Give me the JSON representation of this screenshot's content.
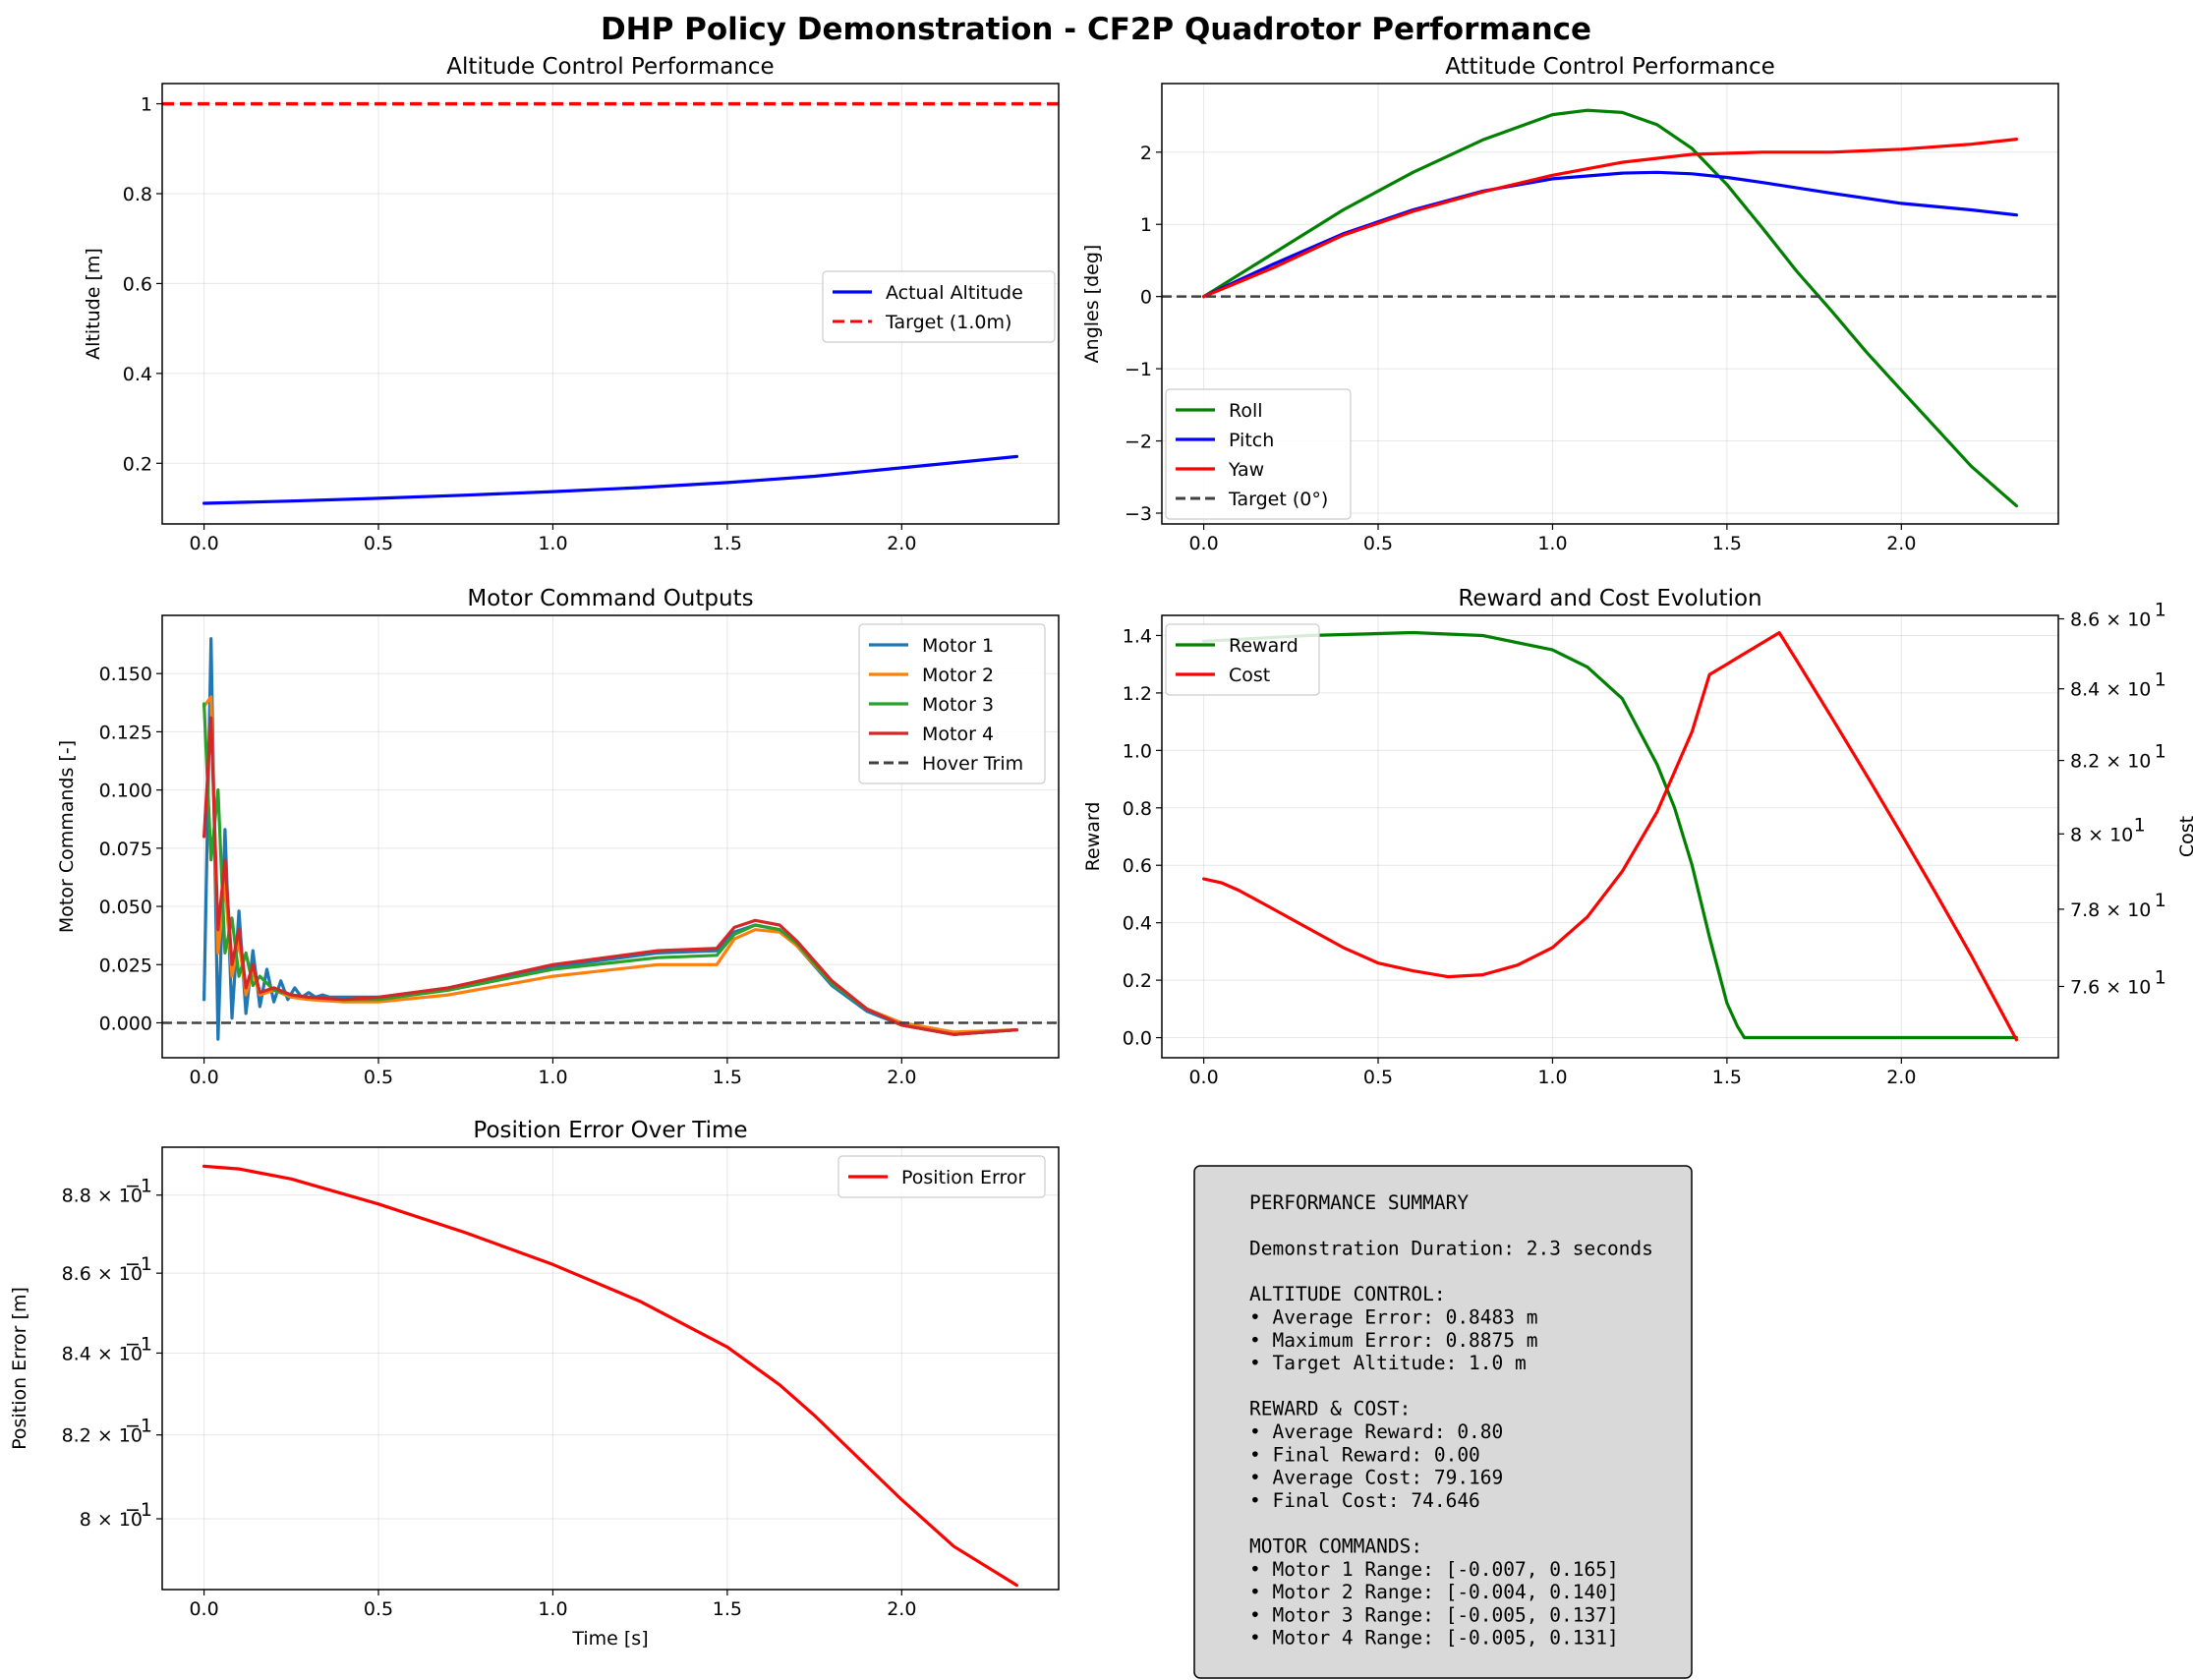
{
  "suptitle": "DHP Policy Demonstration - CF2P Quadrotor Performance",
  "colors": {
    "blue": "#0000ff",
    "red": "#ff0000",
    "green": "#008000",
    "dark": "#404040",
    "motor1": "#1f77b4",
    "motor2": "#ff7f0e",
    "motor3": "#2ca02c",
    "motor4": "#d62728"
  },
  "chart_data": [
    {
      "id": "altitude",
      "type": "line",
      "title": "Altitude Control Performance",
      "xlabel": "",
      "ylabel": "Altitude [m]",
      "xlim": [
        -0.12,
        2.45
      ],
      "ylim": [
        0.065,
        1.045
      ],
      "xticks": [
        0.0,
        0.5,
        1.0,
        1.5,
        2.0
      ],
      "yticks": [
        0.2,
        0.4,
        0.6,
        0.8,
        1.0
      ],
      "legend_position": "center-right",
      "series": [
        {
          "name": "Actual Altitude",
          "color": "#0000ff",
          "style": "solid",
          "x": [
            0,
            0.25,
            0.5,
            0.75,
            1.0,
            1.25,
            1.5,
            1.75,
            2.0,
            2.33
          ],
          "y": [
            0.111,
            0.116,
            0.122,
            0.129,
            0.137,
            0.146,
            0.157,
            0.171,
            0.19,
            0.215
          ]
        },
        {
          "name": "Target (1.0m)",
          "color": "#ff0000",
          "style": "dashed",
          "hline": 1.0
        }
      ]
    },
    {
      "id": "attitude",
      "type": "line",
      "title": "Attitude Control Performance",
      "xlabel": "",
      "ylabel": "Angles [deg]",
      "xlim": [
        -0.12,
        2.45
      ],
      "ylim": [
        -3.15,
        2.95
      ],
      "xticks": [
        0.0,
        0.5,
        1.0,
        1.5,
        2.0
      ],
      "yticks": [
        -3,
        -2,
        -1,
        0,
        1,
        2
      ],
      "legend_position": "lower-left",
      "series": [
        {
          "name": "Roll",
          "color": "#008000",
          "style": "solid",
          "x": [
            0,
            0.2,
            0.4,
            0.6,
            0.8,
            1.0,
            1.1,
            1.2,
            1.3,
            1.4,
            1.5,
            1.6,
            1.7,
            1.8,
            1.9,
            2.0,
            2.2,
            2.33
          ],
          "y": [
            0,
            0.6,
            1.2,
            1.72,
            2.17,
            2.52,
            2.58,
            2.55,
            2.38,
            2.05,
            1.55,
            0.96,
            0.35,
            -0.2,
            -0.77,
            -1.3,
            -2.35,
            -2.9
          ]
        },
        {
          "name": "Pitch",
          "color": "#0000ff",
          "style": "solid",
          "x": [
            0,
            0.2,
            0.4,
            0.6,
            0.8,
            1.0,
            1.2,
            1.3,
            1.4,
            1.5,
            1.6,
            1.8,
            2.0,
            2.2,
            2.33
          ],
          "y": [
            0,
            0.45,
            0.87,
            1.2,
            1.46,
            1.63,
            1.71,
            1.72,
            1.7,
            1.65,
            1.58,
            1.43,
            1.29,
            1.2,
            1.13
          ]
        },
        {
          "name": "Yaw",
          "color": "#ff0000",
          "style": "solid",
          "x": [
            0,
            0.2,
            0.4,
            0.6,
            0.8,
            1.0,
            1.2,
            1.4,
            1.6,
            1.8,
            2.0,
            2.2,
            2.33
          ],
          "y": [
            0,
            0.4,
            0.85,
            1.18,
            1.45,
            1.68,
            1.86,
            1.97,
            2.0,
            2.0,
            2.04,
            2.11,
            2.18
          ]
        },
        {
          "name": "Target (0°)",
          "color": "#404040",
          "style": "dashed",
          "hline": 0
        }
      ]
    },
    {
      "id": "motors",
      "type": "line",
      "title": "Motor Command Outputs",
      "xlabel": "",
      "ylabel": "Motor Commands [-]",
      "xlim": [
        -0.12,
        2.45
      ],
      "ylim": [
        -0.015,
        0.175
      ],
      "xticks": [
        0.0,
        0.5,
        1.0,
        1.5,
        2.0
      ],
      "yticks": [
        0.0,
        0.025,
        0.05,
        0.075,
        0.1,
        0.125,
        0.15
      ],
      "ytick_labels": [
        "0.000",
        "0.025",
        "0.050",
        "0.075",
        "0.100",
        "0.125",
        "0.150"
      ],
      "legend_position": "top-right",
      "series": [
        {
          "name": "Motor 1",
          "color": "#1f77b4",
          "style": "solid",
          "x": [
            0,
            0.02,
            0.04,
            0.06,
            0.08,
            0.1,
            0.12,
            0.14,
            0.16,
            0.18,
            0.2,
            0.22,
            0.24,
            0.26,
            0.28,
            0.3,
            0.32,
            0.34,
            0.36,
            0.4,
            0.5,
            0.7,
            1.0,
            1.3,
            1.47,
            1.52,
            1.58,
            1.65,
            1.7,
            1.8,
            1.9,
            2.0,
            2.15,
            2.33
          ],
          "y": [
            0.01,
            0.165,
            -0.007,
            0.083,
            0.002,
            0.048,
            0.004,
            0.031,
            0.007,
            0.023,
            0.009,
            0.018,
            0.01,
            0.015,
            0.011,
            0.013,
            0.011,
            0.012,
            0.011,
            0.011,
            0.011,
            0.015,
            0.024,
            0.03,
            0.031,
            0.039,
            0.042,
            0.04,
            0.033,
            0.016,
            0.005,
            -0.001,
            -0.005,
            -0.003
          ]
        },
        {
          "name": "Motor 2",
          "color": "#ff7f0e",
          "style": "solid",
          "x": [
            0,
            0.02,
            0.04,
            0.06,
            0.08,
            0.1,
            0.12,
            0.14,
            0.16,
            0.2,
            0.25,
            0.3,
            0.4,
            0.5,
            0.7,
            1.0,
            1.3,
            1.47,
            1.52,
            1.58,
            1.65,
            1.7,
            1.8,
            1.9,
            2.0,
            2.15,
            2.33
          ],
          "y": [
            0.136,
            0.14,
            0.03,
            0.06,
            0.02,
            0.035,
            0.012,
            0.022,
            0.012,
            0.014,
            0.011,
            0.01,
            0.009,
            0.009,
            0.012,
            0.02,
            0.025,
            0.025,
            0.036,
            0.04,
            0.039,
            0.033,
            0.017,
            0.006,
            0.0,
            -0.004,
            -0.003
          ]
        },
        {
          "name": "Motor 3",
          "color": "#2ca02c",
          "style": "solid",
          "x": [
            0,
            0.02,
            0.04,
            0.06,
            0.08,
            0.1,
            0.12,
            0.14,
            0.16,
            0.2,
            0.25,
            0.3,
            0.4,
            0.5,
            0.7,
            1.0,
            1.3,
            1.47,
            1.52,
            1.58,
            1.65,
            1.7,
            1.8,
            1.9,
            2.0,
            2.15,
            2.33
          ],
          "y": [
            0.137,
            0.07,
            0.1,
            0.03,
            0.045,
            0.02,
            0.03,
            0.016,
            0.02,
            0.014,
            0.012,
            0.011,
            0.01,
            0.01,
            0.014,
            0.023,
            0.028,
            0.029,
            0.038,
            0.042,
            0.04,
            0.034,
            0.017,
            0.006,
            -0.001,
            -0.005,
            -0.003
          ]
        },
        {
          "name": "Motor 4",
          "color": "#d62728",
          "style": "solid",
          "x": [
            0,
            0.02,
            0.04,
            0.06,
            0.08,
            0.1,
            0.12,
            0.14,
            0.16,
            0.2,
            0.25,
            0.3,
            0.4,
            0.5,
            0.7,
            1.0,
            1.3,
            1.47,
            1.52,
            1.58,
            1.65,
            1.7,
            1.8,
            1.9,
            2.0,
            2.15,
            2.33
          ],
          "y": [
            0.08,
            0.131,
            0.04,
            0.07,
            0.025,
            0.04,
            0.015,
            0.025,
            0.013,
            0.015,
            0.012,
            0.011,
            0.01,
            0.011,
            0.015,
            0.025,
            0.031,
            0.032,
            0.041,
            0.044,
            0.042,
            0.035,
            0.018,
            0.006,
            -0.001,
            -0.005,
            -0.003
          ]
        },
        {
          "name": "Hover Trim",
          "color": "#404040",
          "style": "dashed",
          "hline": 0
        }
      ]
    },
    {
      "id": "reward_cost",
      "type": "line",
      "title": "Reward and Cost Evolution",
      "xlabel": "",
      "ylabel": "Reward",
      "ylabel_right": "Cost",
      "xlim": [
        -0.12,
        2.45
      ],
      "ylim": [
        -0.07,
        1.47
      ],
      "ylim_right": [
        74.2,
        86.1
      ],
      "y_right_scale": "log",
      "xticks": [
        0.0,
        0.5,
        1.0,
        1.5,
        2.0
      ],
      "yticks": [
        0.0,
        0.2,
        0.4,
        0.6,
        0.8,
        1.0,
        1.2,
        1.4
      ],
      "ytick_labels": [
        "0.0",
        "0.2",
        "0.4",
        "0.6",
        "0.8",
        "1.0",
        "1.2",
        "1.4"
      ],
      "yticks_right": [
        76,
        78,
        80,
        82,
        84,
        86
      ],
      "ytick_labels_right": [
        "7.6 × 10",
        "7.8 × 10",
        "8 × 10",
        "8.2 × 10",
        "8.4 × 10",
        "8.6 × 10"
      ],
      "ytick_exponent_right": "1",
      "legend_position": "top-left",
      "series": [
        {
          "name": "Reward",
          "color": "#008000",
          "style": "solid",
          "axis": "left",
          "x": [
            0,
            0.3,
            0.6,
            0.8,
            1.0,
            1.1,
            1.2,
            1.3,
            1.35,
            1.4,
            1.45,
            1.5,
            1.53,
            1.55,
            1.6,
            2.0,
            2.33
          ],
          "y": [
            1.38,
            1.4,
            1.41,
            1.4,
            1.35,
            1.29,
            1.18,
            0.95,
            0.8,
            0.6,
            0.35,
            0.12,
            0.04,
            0.0,
            0.0,
            0.0,
            0.0
          ]
        },
        {
          "name": "Cost",
          "color": "#ff0000",
          "style": "solid",
          "axis": "right",
          "x": [
            0,
            0.05,
            0.1,
            0.2,
            0.3,
            0.4,
            0.5,
            0.6,
            0.7,
            0.8,
            0.9,
            1.0,
            1.1,
            1.2,
            1.3,
            1.4,
            1.45,
            1.5,
            1.55,
            1.6,
            1.65,
            1.7,
            1.8,
            1.9,
            2.0,
            2.1,
            2.2,
            2.33
          ],
          "y": [
            78.8,
            78.7,
            78.5,
            78.0,
            77.5,
            77.0,
            76.6,
            76.4,
            76.25,
            76.3,
            76.55,
            77.0,
            77.8,
            79.0,
            80.6,
            82.8,
            84.4,
            84.7,
            85.0,
            85.3,
            85.6,
            84.8,
            83.2,
            81.6,
            80.0,
            78.4,
            76.8,
            74.65
          ]
        }
      ]
    },
    {
      "id": "position_error",
      "type": "line",
      "title": "Position Error Over Time",
      "xlabel": "Time [s]",
      "ylabel": "Position Error [m]",
      "y_scale": "log",
      "xlim": [
        -0.12,
        2.45
      ],
      "ylim": [
        0.7835,
        0.8925
      ],
      "xticks": [
        0.0,
        0.5,
        1.0,
        1.5,
        2.0
      ],
      "yticks": [
        0.8,
        0.82,
        0.84,
        0.86,
        0.88
      ],
      "ytick_labels": [
        "8 × 10",
        "8.2 × 10",
        "8.4 × 10",
        "8.6 × 10",
        "8.8 × 10"
      ],
      "ytick_exponent": "−1",
      "legend_position": "top-right",
      "series": [
        {
          "name": "Position Error",
          "color": "#ff0000",
          "style": "solid",
          "x": [
            0,
            0.1,
            0.25,
            0.5,
            0.75,
            1.0,
            1.25,
            1.5,
            1.65,
            1.75,
            1.9,
            2.0,
            2.15,
            2.33
          ],
          "y": [
            0.8875,
            0.8868,
            0.8842,
            0.8777,
            0.8703,
            0.8622,
            0.8529,
            0.8415,
            0.8322,
            0.8247,
            0.8125,
            0.8045,
            0.7935,
            0.7845
          ]
        }
      ]
    }
  ],
  "summary": {
    "lines": [
      "PERFORMANCE SUMMARY",
      "",
      "Demonstration Duration: 2.3 seconds",
      "",
      "ALTITUDE CONTROL:",
      "• Average Error: 0.8483 m",
      "• Maximum Error: 0.8875 m",
      "• Target Altitude: 1.0 m",
      "",
      "REWARD & COST:",
      "• Average Reward: 0.80",
      "• Final Reward: 0.00",
      "• Average Cost: 79.169",
      "• Final Cost: 74.646",
      "",
      "MOTOR COMMANDS:",
      "• Motor 1 Range: [-0.007, 0.165]",
      "• Motor 2 Range: [-0.004, 0.140]",
      "• Motor 3 Range: [-0.005, 0.137]",
      "• Motor 4 Range: [-0.005, 0.131]"
    ]
  }
}
